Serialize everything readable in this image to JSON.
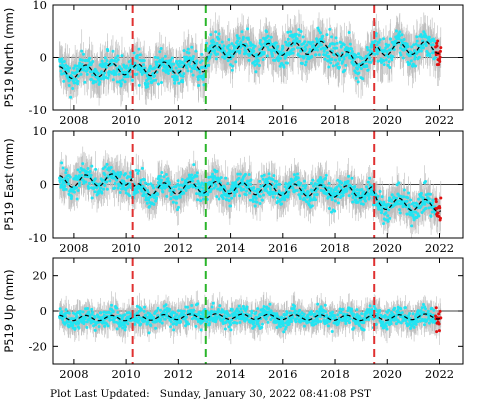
{
  "footer": {
    "label": "Plot Last Updated:",
    "datetime": "Sunday, January 30, 2022 08:41:08 PST"
  },
  "colors": {
    "error_bars": "#bdbdbd",
    "points": "#22e4f2",
    "recent_points": "#e01010",
    "model_line": "#000000",
    "event_red": "#e03030",
    "event_green": "#2ab52a"
  },
  "chart_data": [
    {
      "type": "scatter",
      "ylabel": "P519 North (mm)",
      "xlim": [
        2007.2,
        2022.9
      ],
      "ylim": [
        -10,
        10
      ],
      "xticks": [
        2008,
        2010,
        2012,
        2014,
        2016,
        2018,
        2020,
        2022
      ],
      "yticks": [
        -10,
        0,
        10
      ],
      "vlines": [
        {
          "x": 2010.25,
          "color": "red"
        },
        {
          "x": 2013.05,
          "color": "green"
        },
        {
          "x": 2019.5,
          "color": "red"
        }
      ],
      "trend": [
        [
          2007.4,
          -3.0
        ],
        [
          2010.2,
          -2.0
        ],
        [
          2010.3,
          -2.5
        ],
        [
          2013.0,
          -1.5
        ],
        [
          2013.1,
          1.0
        ],
        [
          2018.0,
          2.0
        ],
        [
          2018.2,
          0.0
        ],
        [
          2019.4,
          -0.5
        ],
        [
          2019.6,
          1.5
        ],
        [
          2022.0,
          2.0
        ]
      ],
      "seasonal_amplitude": 1.2,
      "noise": 2.0
    },
    {
      "type": "scatter",
      "ylabel": "P519 East (mm)",
      "xlim": [
        2007.2,
        2022.9
      ],
      "ylim": [
        -10,
        10
      ],
      "xticks": [
        2008,
        2010,
        2012,
        2014,
        2016,
        2018,
        2020,
        2022
      ],
      "yticks": [
        -10,
        0,
        10
      ],
      "vlines": [
        {
          "x": 2010.25,
          "color": "red"
        },
        {
          "x": 2013.05,
          "color": "green"
        },
        {
          "x": 2019.5,
          "color": "red"
        }
      ],
      "trend": [
        [
          2007.4,
          0.5
        ],
        [
          2010.2,
          1.0
        ],
        [
          2010.3,
          -1.0
        ],
        [
          2013.0,
          -0.5
        ],
        [
          2013.1,
          -0.5
        ],
        [
          2019.4,
          -1.5
        ],
        [
          2019.6,
          -3.5
        ],
        [
          2022.0,
          -4.0
        ]
      ],
      "seasonal_amplitude": 1.1,
      "noise": 1.7
    },
    {
      "type": "scatter",
      "ylabel": "P519 Up (mm)",
      "xlim": [
        2007.2,
        2022.9
      ],
      "ylim": [
        -30,
        30
      ],
      "xticks": [
        2008,
        2010,
        2012,
        2014,
        2016,
        2018,
        2020,
        2022
      ],
      "yticks": [
        -20,
        0,
        20
      ],
      "vlines": [
        {
          "x": 2010.25,
          "color": "red"
        },
        {
          "x": 2013.05,
          "color": "green"
        },
        {
          "x": 2019.5,
          "color": "red"
        }
      ],
      "trend": [
        [
          2007.4,
          -4.0
        ],
        [
          2010.2,
          -4.0
        ],
        [
          2013.0,
          -3.0
        ],
        [
          2019.4,
          -4.0
        ],
        [
          2022.0,
          -3.0
        ]
      ],
      "seasonal_amplitude": 1.5,
      "noise": 4.0
    }
  ]
}
